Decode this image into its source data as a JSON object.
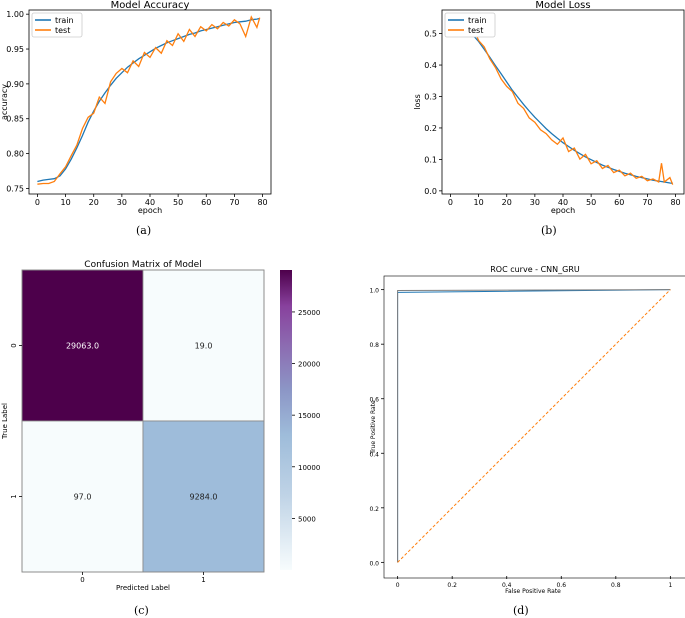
{
  "captions": [
    "(a)",
    "(b)",
    "(c)",
    "(d)"
  ],
  "chart_data": [
    {
      "type": "line",
      "title": "Model Accuracy",
      "xlabel": "epoch",
      "ylabel": "accuracy",
      "xlim": [
        -3,
        83
      ],
      "ylim": [
        0.742,
        1.006
      ],
      "xticks": [
        0,
        10,
        20,
        30,
        40,
        50,
        60,
        70,
        80
      ],
      "yticks": [
        0.75,
        0.8,
        0.85,
        0.9,
        0.95,
        1.0
      ],
      "ytick_labels": [
        "0.75",
        "0.80",
        "0.85",
        "0.90",
        "0.95",
        "1.00"
      ],
      "legend_position": "top-left",
      "series": [
        {
          "name": "train",
          "color": "#1f77b4",
          "x": [
            0,
            2,
            4,
            6,
            8,
            10,
            12,
            14,
            16,
            18,
            20,
            22,
            24,
            26,
            28,
            30,
            32,
            34,
            36,
            38,
            40,
            42,
            44,
            46,
            48,
            50,
            52,
            54,
            56,
            58,
            60,
            62,
            64,
            66,
            68,
            70,
            72,
            74,
            76,
            78,
            79
          ],
          "y": [
            0.76,
            0.762,
            0.763,
            0.764,
            0.768,
            0.778,
            0.792,
            0.808,
            0.826,
            0.845,
            0.861,
            0.875,
            0.887,
            0.898,
            0.908,
            0.916,
            0.924,
            0.93,
            0.936,
            0.941,
            0.946,
            0.951,
            0.955,
            0.959,
            0.962,
            0.965,
            0.968,
            0.971,
            0.973,
            0.976,
            0.978,
            0.98,
            0.982,
            0.984,
            0.986,
            0.988,
            0.989,
            0.99,
            0.992,
            0.993,
            0.994
          ]
        },
        {
          "name": "test",
          "color": "#ff7f0e",
          "x": [
            0,
            2,
            4,
            6,
            8,
            10,
            12,
            14,
            16,
            18,
            20,
            22,
            24,
            26,
            28,
            30,
            32,
            34,
            36,
            38,
            40,
            42,
            44,
            46,
            48,
            50,
            52,
            54,
            56,
            58,
            60,
            62,
            64,
            66,
            68,
            70,
            72,
            74,
            76,
            78,
            79
          ],
          "y": [
            0.756,
            0.757,
            0.757,
            0.76,
            0.771,
            0.781,
            0.797,
            0.812,
            0.836,
            0.852,
            0.858,
            0.881,
            0.872,
            0.903,
            0.915,
            0.922,
            0.916,
            0.933,
            0.925,
            0.945,
            0.938,
            0.952,
            0.944,
            0.962,
            0.955,
            0.972,
            0.961,
            0.978,
            0.968,
            0.982,
            0.976,
            0.985,
            0.979,
            0.988,
            0.983,
            0.992,
            0.986,
            0.968,
            0.996,
            0.981,
            0.995
          ]
        }
      ]
    },
    {
      "type": "line",
      "title": "Model Loss",
      "xlabel": "epoch",
      "ylabel": "loss",
      "xlim": [
        -3,
        83
      ],
      "ylim": [
        -0.01,
        0.575
      ],
      "xticks": [
        0,
        10,
        20,
        30,
        40,
        50,
        60,
        70,
        80
      ],
      "yticks": [
        0.0,
        0.1,
        0.2,
        0.3,
        0.4,
        0.5
      ],
      "ytick_labels": [
        "0.0",
        "0.1",
        "0.2",
        "0.3",
        "0.4",
        "0.5"
      ],
      "legend_position": "top-left",
      "series": [
        {
          "name": "train",
          "color": "#1f77b4",
          "x": [
            8,
            10,
            12,
            14,
            16,
            18,
            20,
            22,
            24,
            26,
            28,
            30,
            32,
            34,
            36,
            38,
            40,
            42,
            44,
            46,
            48,
            50,
            52,
            54,
            56,
            58,
            60,
            62,
            64,
            66,
            68,
            70,
            72,
            74,
            76,
            78,
            79
          ],
          "y": [
            0.495,
            0.475,
            0.45,
            0.425,
            0.398,
            0.372,
            0.346,
            0.32,
            0.297,
            0.275,
            0.254,
            0.234,
            0.216,
            0.198,
            0.182,
            0.167,
            0.153,
            0.141,
            0.129,
            0.118,
            0.108,
            0.099,
            0.09,
            0.082,
            0.075,
            0.068,
            0.062,
            0.056,
            0.051,
            0.046,
            0.042,
            0.038,
            0.034,
            0.031,
            0.028,
            0.025,
            0.024
          ]
        },
        {
          "name": "test",
          "color": "#ff7f0e",
          "x": [
            8,
            10,
            12,
            14,
            16,
            18,
            20,
            22,
            24,
            26,
            28,
            30,
            32,
            34,
            36,
            38,
            40,
            42,
            44,
            46,
            48,
            50,
            52,
            54,
            56,
            58,
            60,
            62,
            64,
            66,
            68,
            70,
            72,
            74,
            75,
            76,
            78,
            79
          ],
          "y": [
            0.52,
            0.478,
            0.458,
            0.42,
            0.392,
            0.356,
            0.332,
            0.316,
            0.278,
            0.262,
            0.232,
            0.218,
            0.194,
            0.182,
            0.162,
            0.148,
            0.168,
            0.125,
            0.136,
            0.101,
            0.116,
            0.086,
            0.096,
            0.071,
            0.081,
            0.058,
            0.066,
            0.048,
            0.056,
            0.04,
            0.046,
            0.032,
            0.038,
            0.028,
            0.088,
            0.028,
            0.042,
            0.02
          ]
        }
      ]
    },
    {
      "type": "heatmap",
      "title": "Confusion Matrix of Model",
      "xlabel": "Predicted Label",
      "ylabel": "True Label",
      "x_categories": [
        "0",
        "1"
      ],
      "y_categories": [
        "0",
        "1"
      ],
      "values": [
        [
          29063.0,
          19.0
        ],
        [
          97.0,
          9284.0
        ]
      ],
      "cell_labels": [
        [
          "29063.0",
          "19.0"
        ],
        [
          "97.0",
          "9284.0"
        ]
      ],
      "colorbar_range": [
        0,
        29063
      ],
      "colorbar_ticks": [
        5000,
        10000,
        15000,
        20000,
        25000
      ],
      "colormap": "BuPu"
    },
    {
      "type": "line",
      "title": "ROC curve - CNN_GRU",
      "xlabel": "False Positive Rate",
      "ylabel": "True Positive Rate",
      "xlim": [
        -0.05,
        1.05
      ],
      "ylim": [
        -0.05,
        1.05
      ],
      "xticks": [
        0.0,
        0.2,
        0.4,
        0.6,
        0.8,
        1.0
      ],
      "yticks": [
        0.0,
        0.2,
        0.4,
        0.6,
        0.8,
        1.0
      ],
      "series": [
        {
          "color": "#1f77b4",
          "x": [
            0.0,
            0.0,
            0.0007,
            1.0
          ],
          "y": [
            0.0,
            0.99,
            0.99,
            1.0
          ]
        },
        {
          "color": "#7f7f7f",
          "x": [
            0.0,
            0.0,
            1.0
          ],
          "y": [
            0.0,
            0.997,
            1.0
          ]
        },
        {
          "color": "#ff7f0e",
          "dashed": true,
          "x": [
            0.0,
            1.0
          ],
          "y": [
            0.0,
            1.0
          ]
        }
      ]
    }
  ]
}
